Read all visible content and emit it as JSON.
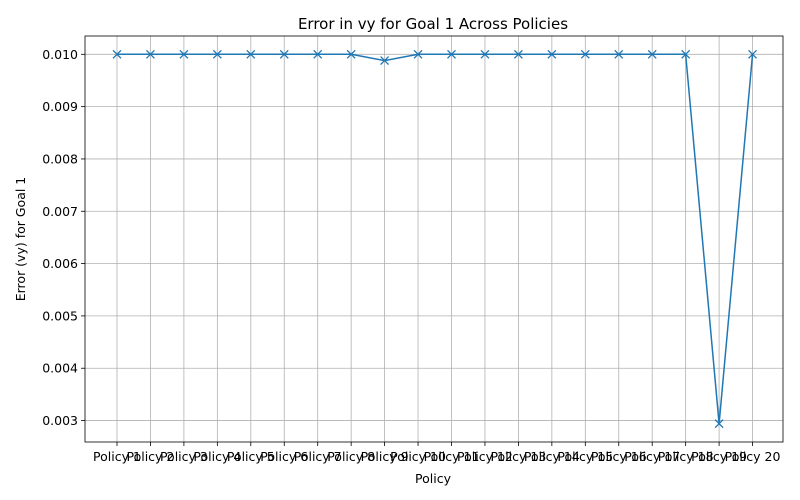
{
  "chart_data": {
    "type": "line",
    "title": "Error in vy for Goal 1 Across Policies",
    "xlabel": "Policy",
    "ylabel": "Error (vy) for Goal 1",
    "categories": [
      "Policy 1",
      "Policy 2",
      "Policy 3",
      "Policy 4",
      "Policy 5",
      "Policy 6",
      "Policy 7",
      "Policy 8",
      "Policy 9",
      "Policy 10",
      "Policy 11",
      "Policy 12",
      "Policy 13",
      "Policy 14",
      "Policy 15",
      "Policy 16",
      "Policy 17",
      "Policy 18",
      "Policy 19",
      "Policy 20"
    ],
    "series": [
      {
        "values": [
          0.01,
          0.01,
          0.01,
          0.01,
          0.01,
          0.01,
          0.01,
          0.01,
          0.00988,
          0.01,
          0.01,
          0.01,
          0.01,
          0.01,
          0.01,
          0.01,
          0.01,
          0.01,
          0.00294,
          0.01
        ],
        "color": "#1f77b4",
        "marker": "x"
      }
    ],
    "yticks": [
      0.003,
      0.004,
      0.005,
      0.006,
      0.007,
      0.008,
      0.009,
      0.01
    ],
    "ytick_labels": [
      "0.003",
      "0.004",
      "0.005",
      "0.006",
      "0.007",
      "0.008",
      "0.009",
      "0.010"
    ],
    "ylim": [
      0.00259,
      0.01035
    ],
    "grid": true
  }
}
